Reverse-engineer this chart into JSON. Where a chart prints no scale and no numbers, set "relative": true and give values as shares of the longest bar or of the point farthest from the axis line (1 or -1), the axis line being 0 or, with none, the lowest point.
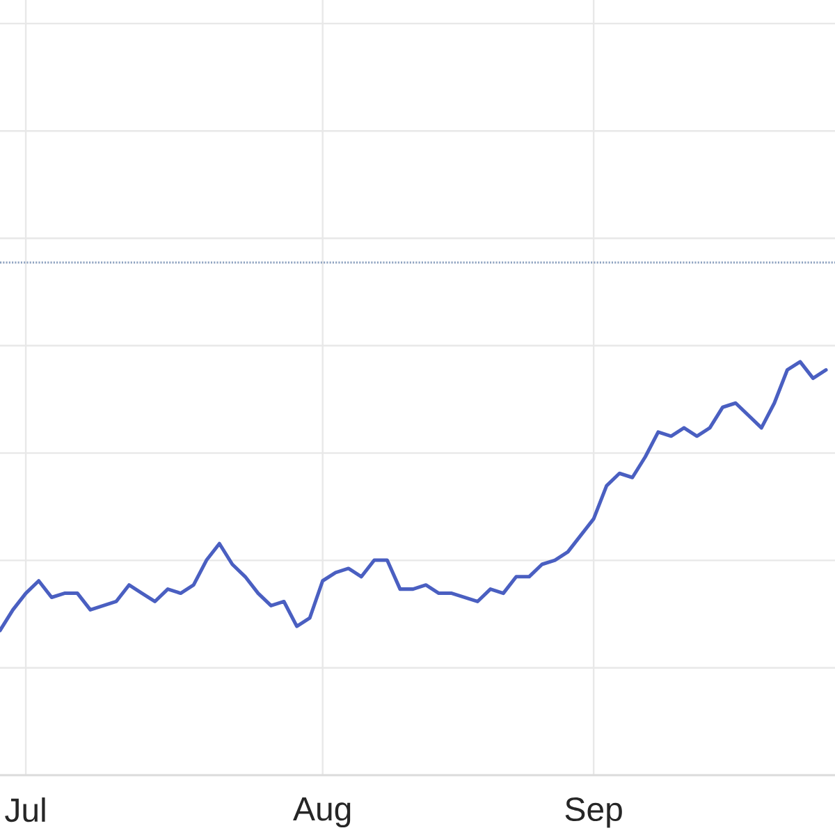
{
  "chart_data": {
    "type": "line",
    "relative": true,
    "categories": [
      null,
      null,
      "Jul",
      null,
      null,
      null,
      null,
      null,
      null,
      null,
      null,
      null,
      null,
      null,
      null,
      null,
      null,
      null,
      null,
      null,
      null,
      null,
      null,
      null,
      null,
      "Aug",
      null,
      null,
      null,
      null,
      null,
      null,
      null,
      null,
      null,
      null,
      null,
      null,
      null,
      null,
      null,
      null,
      null,
      null,
      null,
      null,
      "Sep",
      null,
      null,
      null,
      null,
      null,
      null,
      null,
      null,
      null,
      null,
      null,
      null,
      null,
      null,
      null,
      null,
      null,
      null
    ],
    "series": [
      {
        "color": "#4a5fc1",
        "values": [
          0.35,
          0.4,
          0.44,
          0.47,
          0.43,
          0.44,
          0.44,
          0.4,
          0.41,
          0.42,
          0.46,
          0.44,
          0.42,
          0.45,
          0.44,
          0.46,
          0.52,
          0.56,
          0.51,
          0.48,
          0.44,
          0.41,
          0.42,
          0.36,
          0.38,
          0.47,
          0.49,
          0.5,
          0.48,
          0.52,
          0.52,
          0.45,
          0.45,
          0.46,
          0.44,
          0.44,
          0.43,
          0.42,
          0.45,
          0.44,
          0.48,
          0.48,
          0.51,
          0.52,
          0.54,
          0.58,
          0.62,
          0.7,
          0.73,
          0.72,
          0.77,
          0.83,
          0.82,
          0.84,
          0.82,
          0.84,
          0.89,
          0.9,
          0.87,
          0.84,
          0.9,
          0.98,
          1,
          0.96,
          0.98
        ]
      }
    ],
    "ref_lines": [
      {
        "axis": "y",
        "value": 1.24,
        "color": "#8ea2c0",
        "line_style": "dotted"
      }
    ],
    "grid": true,
    "marker": "none",
    "line_style": "solid"
  }
}
